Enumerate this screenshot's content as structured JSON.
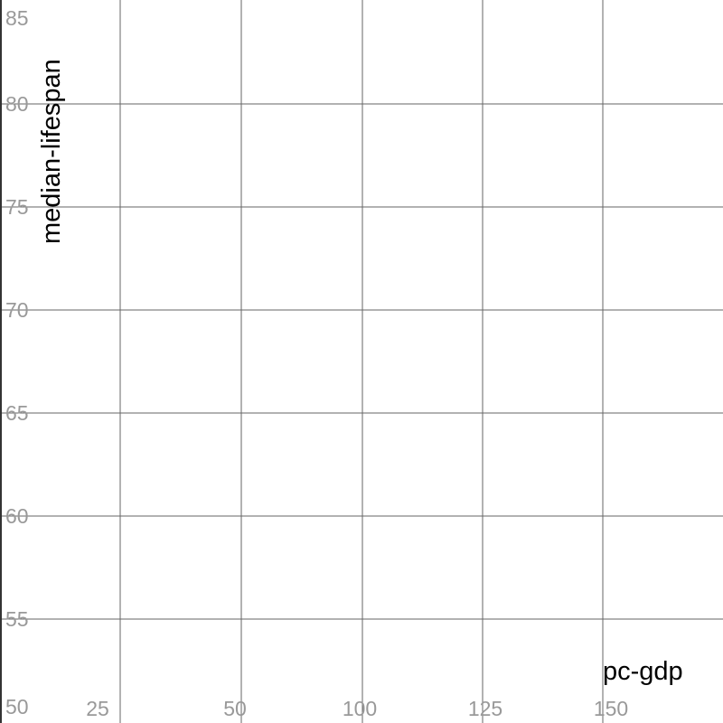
{
  "chart_data": {
    "type": "scatter",
    "title": "",
    "xlabel": "pc-gdp",
    "ylabel": "median-lifespan",
    "x_ticks": [
      "25",
      "50",
      "100",
      "125",
      "150"
    ],
    "y_ticks": [
      "85",
      "80",
      "75",
      "70",
      "65",
      "60",
      "55",
      "50"
    ],
    "ylim": [
      50,
      85
    ],
    "grid": true,
    "series": []
  }
}
